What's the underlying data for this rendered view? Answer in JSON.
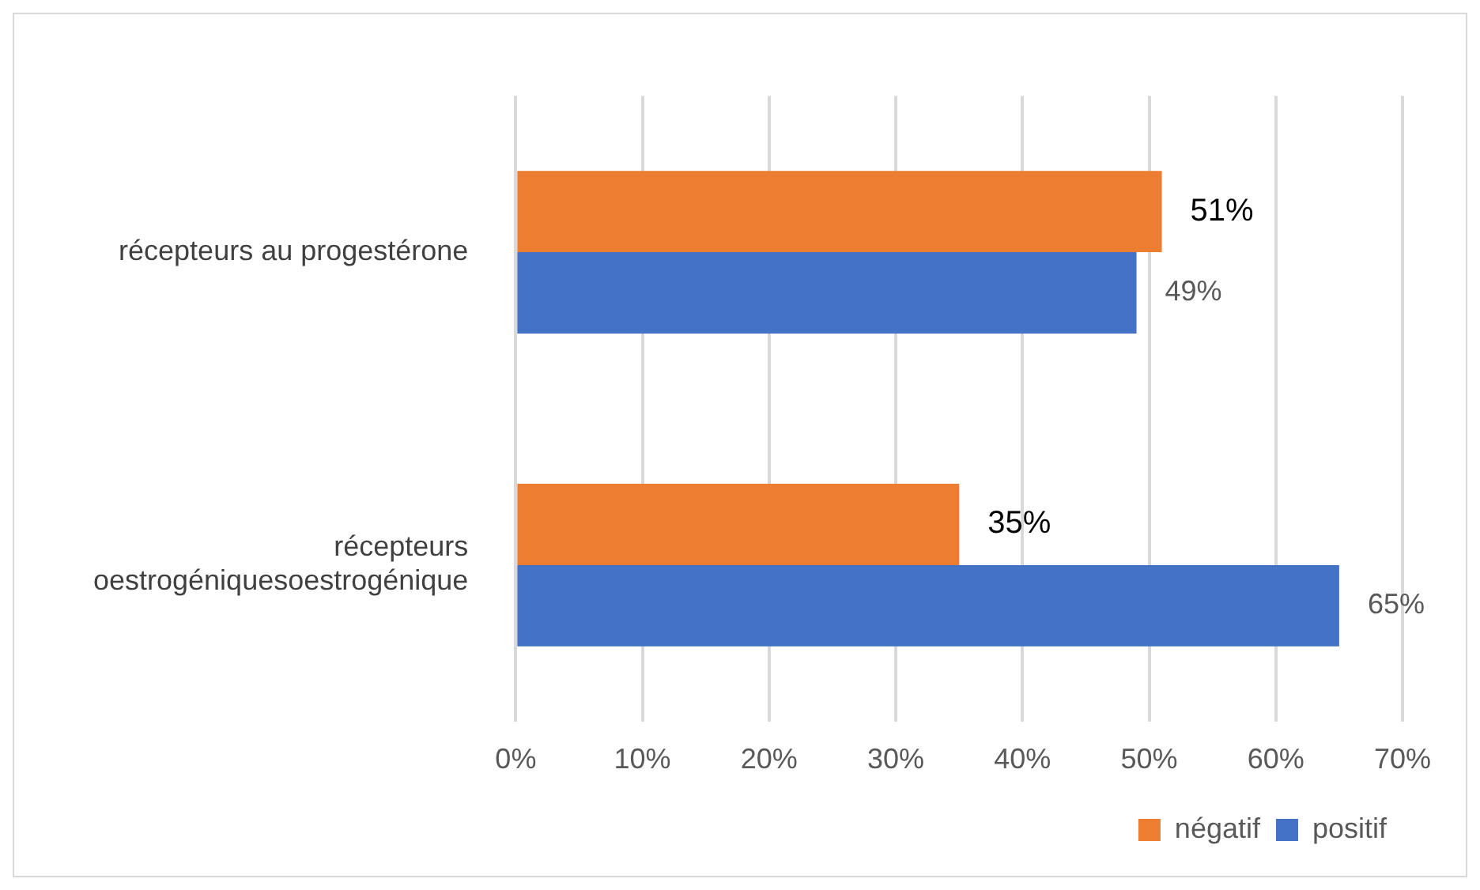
{
  "chart_data": {
    "type": "bar",
    "orientation": "horizontal",
    "categories": [
      "récepteurs au progestérone",
      "récepteurs oestrogéniquesoestrogénique"
    ],
    "series": [
      {
        "name": "négatif",
        "color": "#ed7d31",
        "values": [
          51,
          35
        ],
        "value_labels": [
          "51%",
          "35%"
        ]
      },
      {
        "name": "positif",
        "color": "#4472c4",
        "values": [
          49,
          65
        ],
        "value_labels": [
          "49%",
          "65%"
        ]
      }
    ],
    "xlim": [
      0,
      70
    ],
    "xticks": [
      {
        "value": 0,
        "label": "0%"
      },
      {
        "value": 10,
        "label": "10%"
      },
      {
        "value": 20,
        "label": "20%"
      },
      {
        "value": 30,
        "label": "30%"
      },
      {
        "value": 40,
        "label": "40%"
      },
      {
        "value": 50,
        "label": "50%"
      },
      {
        "value": 60,
        "label": "60%"
      },
      {
        "value": 70,
        "label": "70%"
      }
    ],
    "grid": "x",
    "legend": "bottom right"
  }
}
